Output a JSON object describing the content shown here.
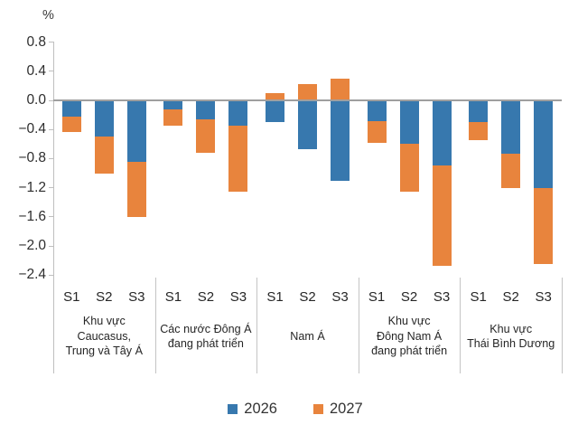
{
  "chart_data": {
    "type": "bar",
    "stacked": true,
    "ylabel": "%",
    "ylim": [
      -2.4,
      0.8
    ],
    "ytick_step": 0.4,
    "ytick_labels": [
      "0.8",
      "0.4",
      "0.0",
      "−0.4",
      "−0.8",
      "−1.2",
      "−1.6",
      "−2.0",
      "−2.4"
    ],
    "grid": "zero-line-only",
    "legend_position": "bottom",
    "sub_categories": [
      "S1",
      "S2",
      "S3"
    ],
    "groups": [
      {
        "label_lines": [
          "Khu vực",
          "Caucasus,",
          "Trung và Tây Á"
        ]
      },
      {
        "label_lines": [
          "Các nước Đông Á",
          "đang phát triển"
        ]
      },
      {
        "label_lines": [
          "Nam Á"
        ]
      },
      {
        "label_lines": [
          "Khu vực",
          "Đông Nam Á",
          "đang phát triển"
        ]
      },
      {
        "label_lines": [
          "Khu vực",
          "Thái Bình Dương"
        ]
      }
    ],
    "series": [
      {
        "name": "2026",
        "color": "#3778ae",
        "values": [
          [
            -0.22,
            -0.5,
            -0.85
          ],
          [
            -0.13,
            -0.26,
            -0.35
          ],
          [
            -0.3,
            -0.67,
            -1.1
          ],
          [
            -0.28,
            -0.6,
            -0.9
          ],
          [
            -0.3,
            -0.73,
            -1.2
          ]
        ]
      },
      {
        "name": "2027",
        "color": "#e8843d",
        "values": [
          [
            -0.22,
            -0.5,
            -0.75
          ],
          [
            -0.22,
            -0.46,
            -0.9
          ],
          [
            0.1,
            0.22,
            0.3
          ],
          [
            -0.3,
            -0.66,
            -1.37
          ],
          [
            -0.25,
            -0.47,
            -1.05
          ]
        ]
      }
    ]
  }
}
